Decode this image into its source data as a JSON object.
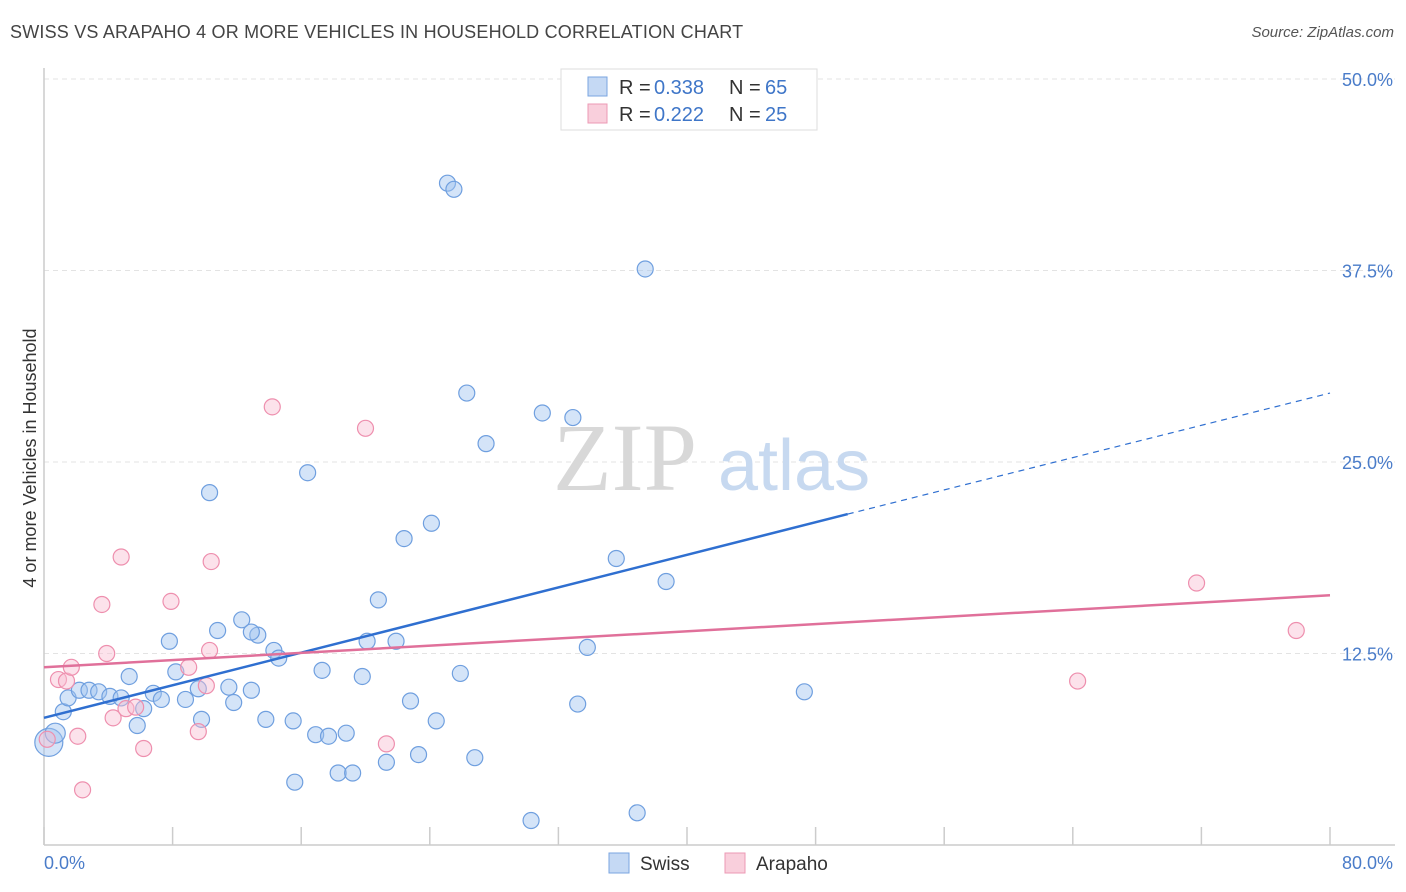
{
  "title": "SWISS VS ARAPAHO 4 OR MORE VEHICLES IN HOUSEHOLD CORRELATION CHART",
  "source": "Source: ZipAtlas.com",
  "watermark": {
    "zip": "ZIP",
    "atlas": "atlas"
  },
  "legend": {
    "entries": [
      {
        "r_label": "R =",
        "r_value": "0.338",
        "n_label": "N =",
        "n_value": "65"
      },
      {
        "r_label": "R =",
        "r_value": "0.222",
        "n_label": "N =",
        "n_value": "25"
      }
    ]
  },
  "chart_data": {
    "type": "scatter",
    "title": "SWISS VS ARAPAHO 4 OR MORE VEHICLES IN HOUSEHOLD CORRELATION CHART",
    "xlabel": "",
    "ylabel": "4 or more Vehicles in Household",
    "xlim": [
      0,
      80
    ],
    "ylim": [
      0,
      50
    ],
    "x_tick_labels": [
      "0.0%",
      "80.0%"
    ],
    "y_ticks": [
      12.5,
      25.0,
      37.5,
      50.0
    ],
    "y_tick_labels": [
      "12.5%",
      "25.0%",
      "37.5%",
      "50.0%"
    ],
    "grid": true,
    "legend_position": "top-center",
    "colors": {
      "swiss": "#6f9fdf",
      "arapaho": "#ee8fae",
      "swiss_line": "#2f6fd0",
      "arapaho_line": "#e0709a"
    },
    "series": [
      {
        "name": "Swiss",
        "R": 0.338,
        "N": 65,
        "trend": {
          "x0": 0,
          "y0": 8.3,
          "x1": 50,
          "y1": 21.6,
          "x_dashed_end": 80,
          "y_dashed_end": 29.5
        },
        "points": [
          [
            0.3,
            6.7
          ],
          [
            0.7,
            7.3
          ],
          [
            1.2,
            8.7
          ],
          [
            1.5,
            9.6
          ],
          [
            2.2,
            10.1
          ],
          [
            2.8,
            10.1
          ],
          [
            3.4,
            10.0
          ],
          [
            4.1,
            9.7
          ],
          [
            4.8,
            9.6
          ],
          [
            5.3,
            11.0
          ],
          [
            5.8,
            7.8
          ],
          [
            6.2,
            8.9
          ],
          [
            6.8,
            9.9
          ],
          [
            7.3,
            9.5
          ],
          [
            7.8,
            13.3
          ],
          [
            8.2,
            11.3
          ],
          [
            8.8,
            9.5
          ],
          [
            9.6,
            10.2
          ],
          [
            9.8,
            8.2
          ],
          [
            10.3,
            23.0
          ],
          [
            10.8,
            14.0
          ],
          [
            11.5,
            10.3
          ],
          [
            11.8,
            9.3
          ],
          [
            12.3,
            14.7
          ],
          [
            12.9,
            10.1
          ],
          [
            13.3,
            13.7
          ],
          [
            13.8,
            8.2
          ],
          [
            14.3,
            12.7
          ],
          [
            14.6,
            12.2
          ],
          [
            15.5,
            8.1
          ],
          [
            15.6,
            4.1
          ],
          [
            16.4,
            24.3
          ],
          [
            16.9,
            7.2
          ],
          [
            17.3,
            11.4
          ],
          [
            17.7,
            7.1
          ],
          [
            18.3,
            4.7
          ],
          [
            18.8,
            7.3
          ],
          [
            19.2,
            4.7
          ],
          [
            19.8,
            11.0
          ],
          [
            20.1,
            13.3
          ],
          [
            20.8,
            16.0
          ],
          [
            21.3,
            5.4
          ],
          [
            21.9,
            13.3
          ],
          [
            22.4,
            20.0
          ],
          [
            22.8,
            9.4
          ],
          [
            23.3,
            5.9
          ],
          [
            24.1,
            21.0
          ],
          [
            24.4,
            8.1
          ],
          [
            25.1,
            43.2
          ],
          [
            25.5,
            42.8
          ],
          [
            25.9,
            11.2
          ],
          [
            26.3,
            29.5
          ],
          [
            26.8,
            5.7
          ],
          [
            27.5,
            26.2
          ],
          [
            30.3,
            1.6
          ],
          [
            31.0,
            28.2
          ],
          [
            33.2,
            9.2
          ],
          [
            33.8,
            12.9
          ],
          [
            35.6,
            18.7
          ],
          [
            36.9,
            2.1
          ],
          [
            37.4,
            37.6
          ],
          [
            38.7,
            17.2
          ],
          [
            47.3,
            10.0
          ],
          [
            32.9,
            27.9
          ],
          [
            12.9,
            13.9
          ]
        ]
      },
      {
        "name": "Arapaho",
        "R": 0.222,
        "N": 25,
        "trend": {
          "x0": 0,
          "y0": 11.6,
          "x1": 80,
          "y1": 16.3
        },
        "points": [
          [
            0.2,
            6.9
          ],
          [
            0.9,
            10.8
          ],
          [
            1.4,
            10.7
          ],
          [
            1.7,
            11.6
          ],
          [
            2.1,
            7.1
          ],
          [
            2.4,
            3.6
          ],
          [
            3.6,
            15.7
          ],
          [
            3.9,
            12.5
          ],
          [
            4.3,
            8.3
          ],
          [
            4.8,
            18.8
          ],
          [
            5.1,
            8.9
          ],
          [
            6.2,
            6.3
          ],
          [
            7.9,
            15.9
          ],
          [
            9.0,
            11.6
          ],
          [
            9.6,
            7.4
          ],
          [
            10.1,
            10.4
          ],
          [
            10.3,
            12.7
          ],
          [
            10.4,
            18.5
          ],
          [
            14.2,
            28.6
          ],
          [
            20.0,
            27.2
          ],
          [
            21.3,
            6.6
          ],
          [
            64.3,
            10.7
          ],
          [
            71.7,
            17.1
          ],
          [
            77.9,
            14.0
          ],
          [
            5.7,
            9.0
          ]
        ]
      }
    ]
  }
}
